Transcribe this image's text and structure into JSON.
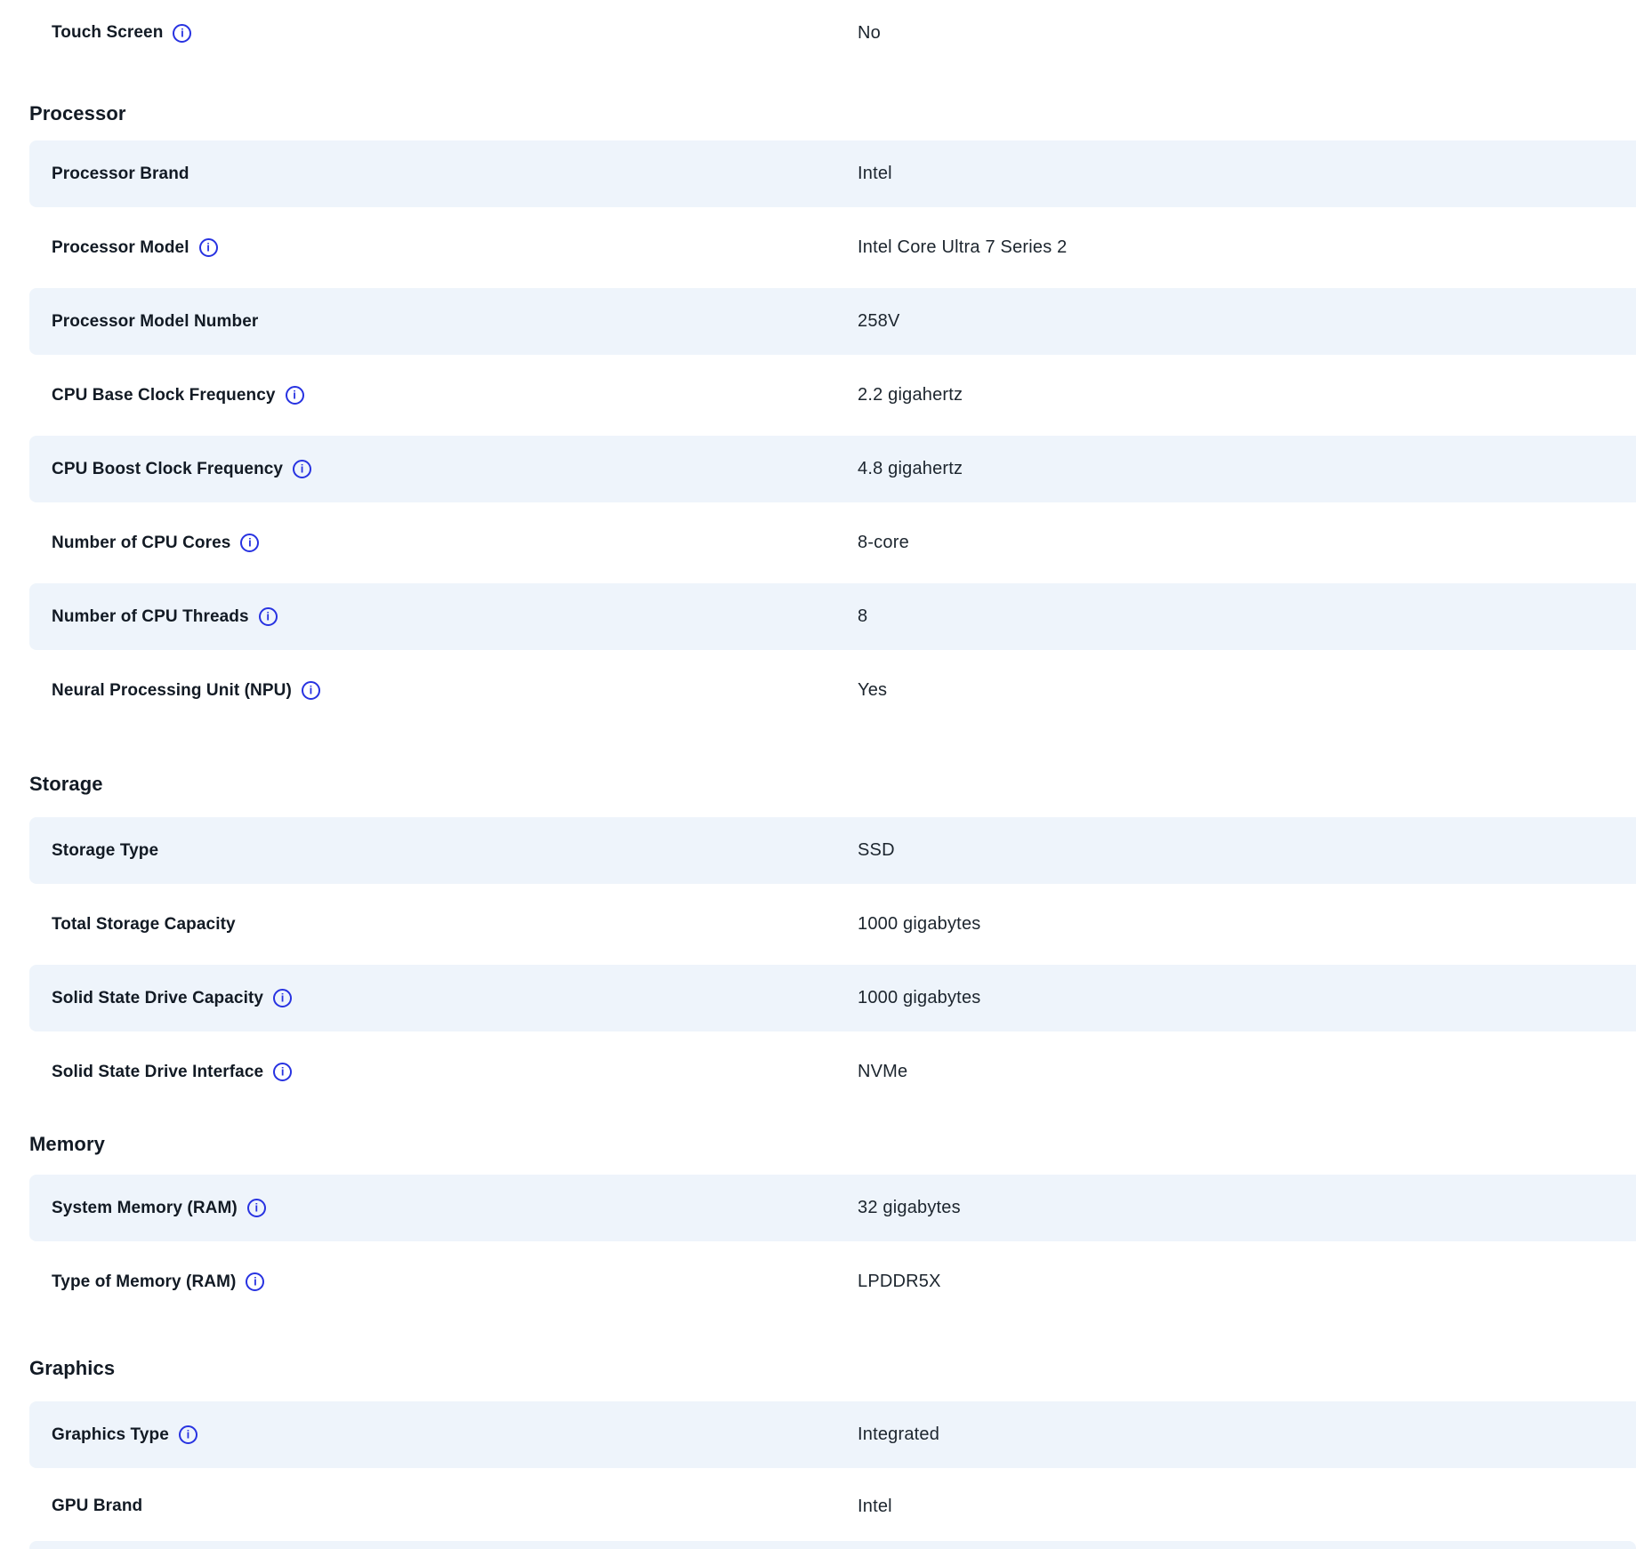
{
  "colors": {
    "row_highlight": "#eef4fb",
    "label_text": "#121a24",
    "value_text": "#1c252e",
    "info_icon_blue": "#2732e1",
    "background": "#ffffff"
  },
  "icons": {
    "info": "i"
  },
  "top_row": {
    "label": "Touch Screen",
    "has_info": true,
    "value": "No",
    "highlight": false
  },
  "sections": [
    {
      "title": "Processor",
      "rows": [
        {
          "label": "Processor Brand",
          "has_info": false,
          "value": "Intel",
          "highlight": true
        },
        {
          "label": "Processor Model",
          "has_info": true,
          "value": "Intel Core Ultra 7 Series 2",
          "highlight": false
        },
        {
          "label": "Processor Model Number",
          "has_info": false,
          "value": "258V",
          "highlight": true
        },
        {
          "label": "CPU Base Clock Frequency",
          "has_info": true,
          "value": "2.2 gigahertz",
          "highlight": false
        },
        {
          "label": "CPU Boost Clock Frequency",
          "has_info": true,
          "value": "4.8 gigahertz",
          "highlight": true
        },
        {
          "label": "Number of CPU Cores",
          "has_info": true,
          "value": "8-core",
          "highlight": false
        },
        {
          "label": "Number of CPU Threads",
          "has_info": true,
          "value": "8",
          "highlight": true
        },
        {
          "label": "Neural Processing Unit (NPU)",
          "has_info": true,
          "value": "Yes",
          "highlight": false
        }
      ]
    },
    {
      "title": "Storage",
      "rows": [
        {
          "label": "Storage Type",
          "has_info": false,
          "value": "SSD",
          "highlight": true
        },
        {
          "label": "Total Storage Capacity",
          "has_info": false,
          "value": "1000 gigabytes",
          "highlight": false
        },
        {
          "label": "Solid State Drive Capacity",
          "has_info": true,
          "value": "1000 gigabytes",
          "highlight": true
        },
        {
          "label": "Solid State Drive Interface",
          "has_info": true,
          "value": "NVMe",
          "highlight": false
        }
      ]
    },
    {
      "title": "Memory",
      "rows": [
        {
          "label": "System Memory (RAM)",
          "has_info": true,
          "value": "32 gigabytes",
          "highlight": true
        },
        {
          "label": "Type of Memory (RAM)",
          "has_info": true,
          "value": "LPDDR5X",
          "highlight": false
        }
      ]
    },
    {
      "title": "Graphics",
      "rows": [
        {
          "label": "Graphics Type",
          "has_info": true,
          "value": "Integrated",
          "highlight": true
        },
        {
          "label": "GPU Brand",
          "has_info": false,
          "value": "Intel",
          "highlight": false
        }
      ],
      "trailing_partial_row": true
    }
  ]
}
